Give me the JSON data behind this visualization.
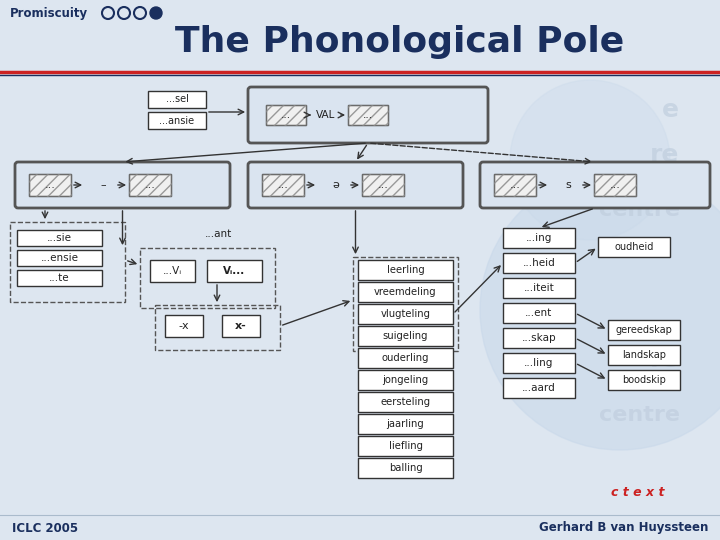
{
  "title": "The Phonological Pole",
  "subtitle": "Promiscuity",
  "footer_left": "ICLC 2005",
  "footer_right": "Gerhard B van Huyssteen",
  "bg_light": "#dde6f0",
  "bg_header": "#dde6f0",
  "title_color": "#1a2f5e",
  "red_line_color": "#cc2222",
  "nav_color": "#1a2f5e",
  "box_fill": "#ffffff",
  "hatch_fill": "#ffffff",
  "outer_fill": "#dae4f0",
  "outer_edge": "#555555",
  "box_edge": "#333333",
  "dashed_edge": "#555555",
  "arrow_color": "#333333",
  "footer_line": "#aabbcc",
  "ctext_color": "#cc2222",
  "watermark_color": "#c0cede"
}
